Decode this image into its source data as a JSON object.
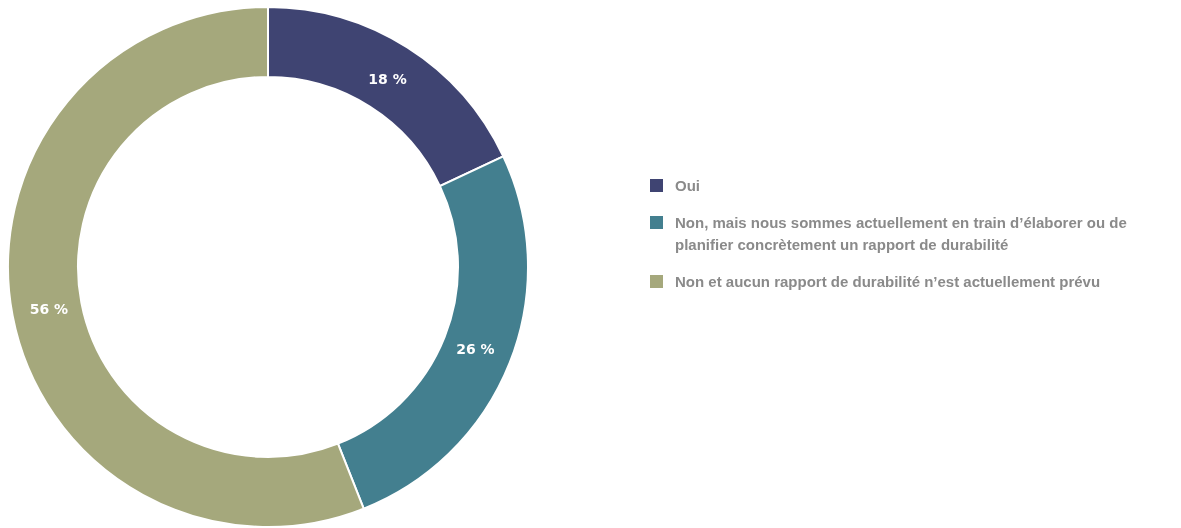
{
  "chart_data": {
    "type": "donut",
    "categories": [
      "Oui",
      "Non, mais nous sommes actuellement en train d’élaborer ou de planifier concrètement un rapport de durabilité",
      "Non et aucun rapport de durabilité n’est actuellement prévu"
    ],
    "values": [
      18,
      26,
      56
    ],
    "colors": [
      "#3f4472",
      "#437f8f",
      "#a5a87c"
    ],
    "value_labels": [
      "18 %",
      "26 %",
      "56 %"
    ],
    "legend": "right"
  }
}
